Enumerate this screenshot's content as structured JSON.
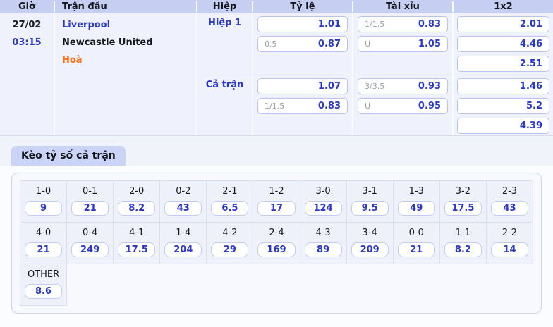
{
  "colors": {
    "accent_blue": "#2b38c5",
    "draw_orange": "#ff6f17",
    "header_bg": "#c6cef1",
    "tab_bg": "#cbd3f7",
    "table_body_bg": "#eff2fd"
  },
  "match_table": {
    "headers": [
      "Giờ",
      "Trận đấu",
      "Hiệp",
      "Tỷ lệ",
      "Tài xỉu",
      "1x2"
    ],
    "time": {
      "date": "27/02",
      "time": "03:15"
    },
    "teams": {
      "home": "Liverpool",
      "away": "Newcastle United",
      "draw": "Hoà"
    },
    "sections": [
      {
        "label": "Hiệp 1",
        "ty_le": [
          {
            "hcap": "",
            "odds": "1.01"
          },
          {
            "hcap": "0.5",
            "odds": "0.87"
          }
        ],
        "tai_xiu": [
          {
            "hcap": "1/1.5",
            "odds": "0.83"
          },
          {
            "hcap": "U",
            "odds": "1.05"
          }
        ],
        "one_x_two": [
          "2.01",
          "4.46",
          "2.51"
        ]
      },
      {
        "label": "Cả trận",
        "ty_le": [
          {
            "hcap": "",
            "odds": "1.07"
          },
          {
            "hcap": "1/1.5",
            "odds": "0.83"
          }
        ],
        "tai_xiu": [
          {
            "hcap": "3/3.5",
            "odds": "0.93"
          },
          {
            "hcap": "U",
            "odds": "0.95"
          }
        ],
        "one_x_two": [
          "1.46",
          "5.2",
          "4.39"
        ]
      }
    ]
  },
  "score_section": {
    "tab_label": "Kèo tỷ số cả trận",
    "cells": [
      {
        "score": "1-0",
        "odds": "9"
      },
      {
        "score": "0-1",
        "odds": "21"
      },
      {
        "score": "2-0",
        "odds": "8.2"
      },
      {
        "score": "0-2",
        "odds": "43"
      },
      {
        "score": "2-1",
        "odds": "6.5"
      },
      {
        "score": "1-2",
        "odds": "17"
      },
      {
        "score": "3-0",
        "odds": "124"
      },
      {
        "score": "3-1",
        "odds": "9.5"
      },
      {
        "score": "1-3",
        "odds": "49"
      },
      {
        "score": "3-2",
        "odds": "17.5"
      },
      {
        "score": "2-3",
        "odds": "43"
      },
      {
        "score": "4-0",
        "odds": "21"
      },
      {
        "score": "0-4",
        "odds": "249"
      },
      {
        "score": "4-1",
        "odds": "17.5"
      },
      {
        "score": "1-4",
        "odds": "204"
      },
      {
        "score": "4-2",
        "odds": "29"
      },
      {
        "score": "2-4",
        "odds": "169"
      },
      {
        "score": "4-3",
        "odds": "89"
      },
      {
        "score": "3-4",
        "odds": "209"
      },
      {
        "score": "0-0",
        "odds": "21"
      },
      {
        "score": "1-1",
        "odds": "8.2"
      },
      {
        "score": "2-2",
        "odds": "14"
      },
      {
        "score": "OTHER",
        "odds": "8.6"
      }
    ]
  }
}
